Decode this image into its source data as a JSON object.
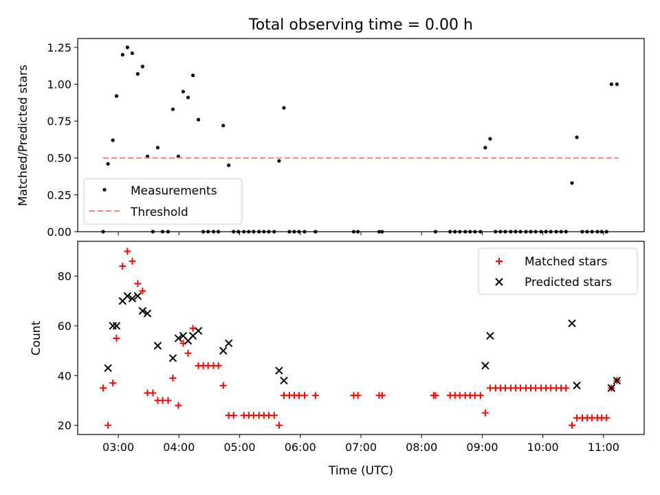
{
  "figure": {
    "title": "Total observing time = 0.00 h",
    "xlabel": "Time (UTC)",
    "xticks": [
      "03:00",
      "04:00",
      "05:00",
      "06:00",
      "07:00",
      "08:00",
      "09:00",
      "10:00",
      "11:00"
    ]
  },
  "chart_data": [
    {
      "type": "scatter",
      "ylabel": "Matched/Predicted stars",
      "xlim": [
        2.33,
        11.67
      ],
      "ylim": [
        0,
        1.31
      ],
      "yticks": [
        "0.00",
        "0.25",
        "0.50",
        "0.75",
        "1.00",
        "1.25"
      ],
      "legend": {
        "placement": "lower-left"
      },
      "series": [
        {
          "name": "Measurements",
          "color": "#000000",
          "marker": "dot",
          "x": [
            2.75,
            2.83,
            2.91,
            2.97,
            3.07,
            3.15,
            3.23,
            3.32,
            3.4,
            3.48,
            3.57,
            3.65,
            3.73,
            3.82,
            3.9,
            3.99,
            4.07,
            4.15,
            4.23,
            4.32,
            4.4,
            4.48,
            4.57,
            4.65,
            4.73,
            4.82,
            4.9,
            4.98,
            5.07,
            5.15,
            5.23,
            5.32,
            5.4,
            5.48,
            5.57,
            5.65,
            5.73,
            5.82,
            5.9,
            5.98,
            6.07,
            6.25,
            6.25,
            6.88,
            6.95,
            7.3,
            7.35,
            8.23,
            8.47,
            8.55,
            8.63,
            8.72,
            8.8,
            8.88,
            8.97,
            9.05,
            9.13,
            9.22,
            9.3,
            9.38,
            9.47,
            9.55,
            9.63,
            9.72,
            9.8,
            9.88,
            9.97,
            10.05,
            10.13,
            10.22,
            10.3,
            10.38,
            10.48,
            10.56,
            10.65,
            10.73,
            10.81,
            10.9,
            10.97,
            11.05,
            11.13,
            11.22
          ],
          "y": [
            0.0,
            0.46,
            0.62,
            0.92,
            1.2,
            1.25,
            1.21,
            1.07,
            1.12,
            0.51,
            0.0,
            0.57,
            0.0,
            0.0,
            0.83,
            0.51,
            0.95,
            0.91,
            1.06,
            0.76,
            0.0,
            0.0,
            0.0,
            0.0,
            0.72,
            0.45,
            0.0,
            0.0,
            0.0,
            0.0,
            0.0,
            0.0,
            0.0,
            0.0,
            0.0,
            0.48,
            0.84,
            0.0,
            0.0,
            0.0,
            0.0,
            0.0,
            0.0,
            0.0,
            0.0,
            0.0,
            0.0,
            0.0,
            0.0,
            0.0,
            0.0,
            0.0,
            0.0,
            0.0,
            0.0,
            0.57,
            0.63,
            0.0,
            0.0,
            0.0,
            0.0,
            0.0,
            0.0,
            0.0,
            0.0,
            0.0,
            0.0,
            0.0,
            0.0,
            0.0,
            0.0,
            0.0,
            0.33,
            0.64,
            0.0,
            0.0,
            0.0,
            0.0,
            0.0,
            0.0,
            1.0,
            1.0
          ]
        },
        {
          "name": "Threshold",
          "color": "#ff7f7f",
          "style": "dashed",
          "x": [
            2.75,
            11.25
          ],
          "y": [
            0.5,
            0.5
          ]
        }
      ]
    },
    {
      "type": "scatter",
      "ylabel": "Count",
      "xlim": [
        2.33,
        11.67
      ],
      "ylim": [
        16.3,
        94
      ],
      "yticks": [
        "20",
        "40",
        "60",
        "80"
      ],
      "legend": {
        "placement": "upper-right"
      },
      "series": [
        {
          "name": "Matched stars",
          "color": "#ff0000",
          "marker": "plus",
          "x": [
            2.75,
            2.83,
            2.91,
            2.97,
            3.07,
            3.15,
            3.23,
            3.32,
            3.4,
            3.48,
            3.57,
            3.65,
            3.73,
            3.82,
            3.9,
            3.99,
            4.07,
            4.15,
            4.23,
            4.32,
            4.4,
            4.48,
            4.57,
            4.65,
            4.73,
            4.82,
            4.9,
            5.07,
            5.15,
            5.23,
            5.32,
            5.4,
            5.48,
            5.57,
            5.65,
            5.73,
            5.82,
            5.9,
            5.98,
            6.07,
            6.25,
            6.88,
            6.95,
            7.3,
            7.35,
            8.2,
            8.23,
            8.47,
            8.55,
            8.63,
            8.72,
            8.8,
            8.88,
            8.97,
            9.05,
            9.13,
            9.22,
            9.3,
            9.38,
            9.47,
            9.55,
            9.63,
            9.72,
            9.8,
            9.88,
            9.97,
            10.05,
            10.13,
            10.22,
            10.3,
            10.38,
            10.48,
            10.56,
            10.65,
            10.73,
            10.81,
            10.9,
            10.97,
            11.05,
            11.13,
            11.22
          ],
          "y": [
            35,
            20,
            37,
            55,
            84,
            90,
            86,
            77,
            74,
            33,
            33,
            30,
            30,
            30,
            39,
            28,
            53,
            49,
            59,
            44,
            44,
            44,
            44,
            44,
            36,
            24,
            24,
            24,
            24,
            24,
            24,
            24,
            24,
            24,
            20,
            32,
            32,
            32,
            32,
            32,
            32,
            32,
            32,
            32,
            32,
            32,
            32,
            32,
            32,
            32,
            32,
            32,
            32,
            32,
            25,
            35,
            35,
            35,
            35,
            35,
            35,
            35,
            35,
            35,
            35,
            35,
            35,
            35,
            35,
            35,
            35,
            20,
            23,
            23,
            23,
            23,
            23,
            23,
            23,
            35,
            38
          ]
        },
        {
          "name": "Predicted stars",
          "color": "#000000",
          "marker": "cross",
          "x": [
            2.83,
            2.91,
            2.97,
            3.07,
            3.15,
            3.23,
            3.32,
            3.4,
            3.48,
            3.65,
            3.9,
            3.99,
            4.07,
            4.15,
            4.23,
            4.32,
            4.73,
            4.82,
            5.65,
            5.73,
            9.05,
            9.13,
            10.48,
            10.56,
            11.13,
            11.22
          ],
          "y": [
            43,
            60,
            60,
            70,
            72,
            71,
            72,
            66,
            65,
            52,
            47,
            55,
            56,
            54,
            56,
            58,
            50,
            53,
            42,
            38,
            44,
            56,
            61,
            36,
            35,
            38
          ]
        }
      ]
    }
  ]
}
